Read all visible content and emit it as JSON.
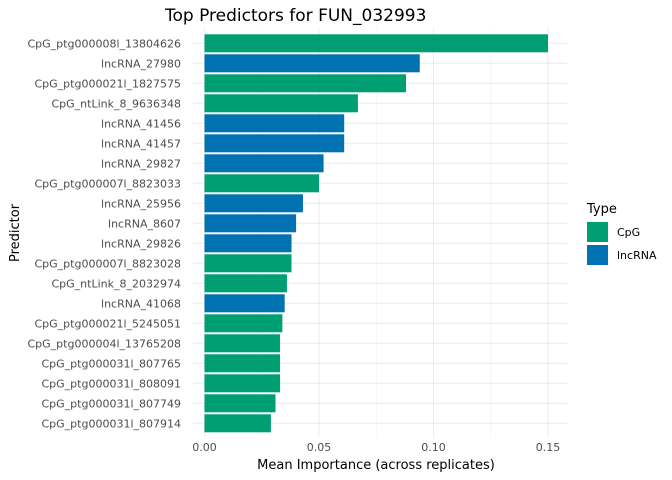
{
  "chart_data": {
    "type": "bar",
    "orientation": "horizontal",
    "title": "Top Predictors for FUN_032993",
    "xlabel": "Mean Importance (across replicates)",
    "ylabel": "Predictor",
    "xlim": [
      0,
      0.157
    ],
    "xticks": [
      0.0,
      0.05,
      0.1,
      0.15
    ],
    "xtick_labels": [
      "0.00",
      "0.05",
      "0.10",
      "0.15"
    ],
    "grid": true,
    "legend": {
      "title": "Type",
      "placement": "right",
      "entries": [
        {
          "name": "CpG",
          "color": "#009E73"
        },
        {
          "name": "lncRNA",
          "color": "#0072B2"
        }
      ]
    },
    "categories": [
      "CpG_ptg000008l_13804626",
      "lncRNA_27980",
      "CpG_ptg000021l_1827575",
      "CpG_ntLink_8_9636348",
      "lncRNA_41456",
      "lncRNA_41457",
      "lncRNA_29827",
      "CpG_ptg000007l_8823033",
      "lncRNA_25956",
      "lncRNA_8607",
      "lncRNA_29826",
      "CpG_ptg000007l_8823028",
      "CpG_ntLink_8_2032974",
      "lncRNA_41068",
      "CpG_ptg000021l_5245051",
      "CpG_ptg000004l_13765208",
      "CpG_ptg000031l_807765",
      "CpG_ptg000031l_808091",
      "CpG_ptg000031l_807749",
      "CpG_ptg000031l_807914"
    ],
    "values": [
      0.15,
      0.094,
      0.088,
      0.067,
      0.061,
      0.061,
      0.052,
      0.05,
      0.043,
      0.04,
      0.038,
      0.038,
      0.036,
      0.035,
      0.034,
      0.033,
      0.033,
      0.033,
      0.031,
      0.029
    ],
    "types": [
      "CpG",
      "lncRNA",
      "CpG",
      "CpG",
      "lncRNA",
      "lncRNA",
      "lncRNA",
      "CpG",
      "lncRNA",
      "lncRNA",
      "lncRNA",
      "CpG",
      "CpG",
      "lncRNA",
      "CpG",
      "CpG",
      "CpG",
      "CpG",
      "CpG",
      "CpG"
    ]
  }
}
